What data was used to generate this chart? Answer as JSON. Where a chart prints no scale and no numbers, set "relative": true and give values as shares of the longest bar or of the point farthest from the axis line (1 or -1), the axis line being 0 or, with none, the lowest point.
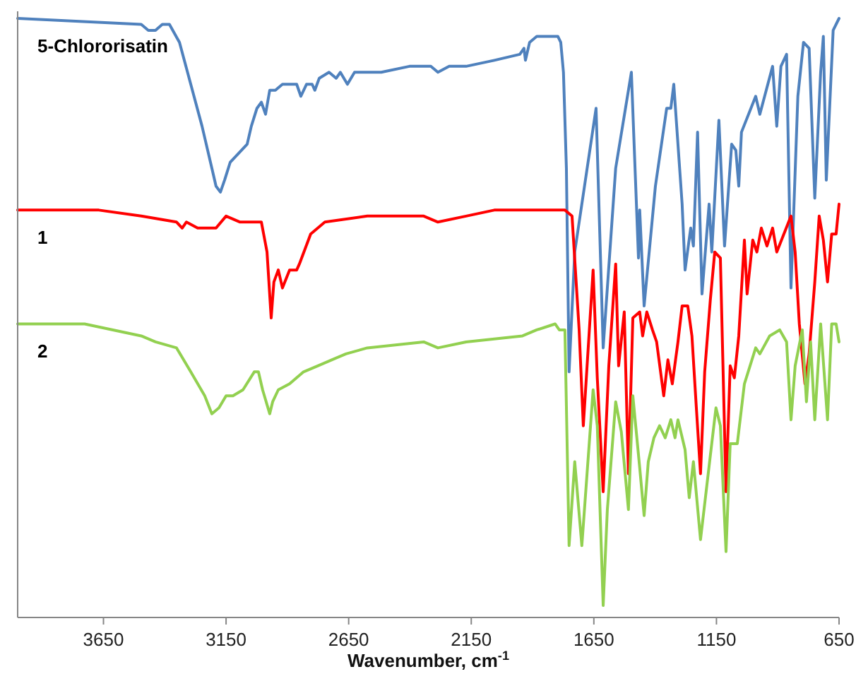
{
  "chart_data": {
    "type": "line",
    "relative": true,
    "xlabel": "Wavenumber, cm$^{-1}$",
    "xlim": [
      4000,
      650
    ],
    "xticks": [
      3650,
      3150,
      2650,
      2150,
      1650,
      1150,
      650
    ],
    "tick_labels": "x",
    "legend": false,
    "grid": false,
    "marker": "none",
    "line_style": "solid",
    "series": [
      {
        "name": "5-Chlororisatin",
        "color": "#4f81bd",
        "x": [
          4000,
          3496,
          3467,
          3438,
          3410,
          3381,
          3340,
          3294,
          3248,
          3208,
          3191,
          3173,
          3156,
          3133,
          3110,
          3087,
          3064,
          3047,
          3024,
          3006,
          2989,
          2972,
          2949,
          2920,
          2891,
          2862,
          2845,
          2822,
          2799,
          2788,
          2770,
          2730,
          2701,
          2684,
          2655,
          2626,
          2574,
          2517,
          2402,
          2315,
          2286,
          2240,
          2171,
          2056,
          1952,
          1935,
          1929,
          1912,
          1883,
          1797,
          1785,
          1774,
          1762,
          1751,
          1728,
          1641,
          1612,
          1561,
          1497,
          1468,
          1463,
          1445,
          1399,
          1353,
          1336,
          1324,
          1290,
          1278,
          1255,
          1244,
          1227,
          1209,
          1180,
          1169,
          1140,
          1117,
          1088,
          1071,
          1059,
          1048,
          990,
          973,
          921,
          904,
          887,
          864,
          846,
          818,
          795,
          772,
          749,
          725,
          714,
          702,
          674,
          650
        ],
        "values": [
          1.0,
          0.99,
          0.98,
          0.98,
          0.99,
          0.99,
          0.96,
          0.89,
          0.82,
          0.75,
          0.72,
          0.71,
          0.73,
          0.76,
          0.77,
          0.78,
          0.79,
          0.82,
          0.85,
          0.86,
          0.84,
          0.88,
          0.88,
          0.89,
          0.89,
          0.89,
          0.87,
          0.89,
          0.89,
          0.88,
          0.9,
          0.91,
          0.9,
          0.91,
          0.89,
          0.91,
          0.91,
          0.91,
          0.92,
          0.92,
          0.91,
          0.92,
          0.92,
          0.93,
          0.94,
          0.95,
          0.93,
          0.96,
          0.97,
          0.97,
          0.96,
          0.91,
          0.75,
          0.41,
          0.61,
          0.85,
          0.45,
          0.75,
          0.91,
          0.6,
          0.68,
          0.52,
          0.72,
          0.85,
          0.85,
          0.89,
          0.69,
          0.58,
          0.65,
          0.62,
          0.81,
          0.54,
          0.69,
          0.61,
          0.83,
          0.62,
          0.79,
          0.78,
          0.72,
          0.81,
          0.87,
          0.84,
          0.92,
          0.82,
          0.92,
          0.94,
          0.55,
          0.87,
          0.96,
          0.95,
          0.7,
          0.91,
          0.97,
          0.73,
          0.98,
          1.0
        ]
      },
      {
        "name": "1",
        "color": "#ff0000",
        "x": [
          4000,
          3669,
          3496,
          3352,
          3329,
          3312,
          3266,
          3208,
          3191,
          3150,
          3093,
          3006,
          2983,
          2966,
          2955,
          2937,
          2920,
          2891,
          2862,
          2851,
          2805,
          2747,
          2574,
          2344,
          2286,
          2171,
          2056,
          1883,
          1768,
          1739,
          1710,
          1693,
          1653,
          1636,
          1612,
          1589,
          1561,
          1549,
          1526,
          1509,
          1491,
          1463,
          1451,
          1434,
          1411,
          1394,
          1365,
          1348,
          1330,
          1307,
          1290,
          1267,
          1250,
          1232,
          1215,
          1198,
          1175,
          1157,
          1134,
          1111,
          1094,
          1077,
          1059,
          1036,
          1025,
          1002,
          985,
          967,
          944,
          921,
          904,
          846,
          829,
          812,
          789,
          772,
          749,
          731,
          714,
          697,
          680,
          662,
          650
        ],
        "values": [
          0.68,
          0.68,
          0.67,
          0.66,
          0.65,
          0.66,
          0.65,
          0.65,
          0.65,
          0.67,
          0.66,
          0.66,
          0.61,
          0.5,
          0.56,
          0.58,
          0.55,
          0.58,
          0.58,
          0.59,
          0.64,
          0.66,
          0.67,
          0.67,
          0.66,
          0.67,
          0.68,
          0.68,
          0.68,
          0.67,
          0.48,
          0.32,
          0.58,
          0.4,
          0.21,
          0.42,
          0.59,
          0.42,
          0.51,
          0.24,
          0.5,
          0.51,
          0.47,
          0.51,
          0.48,
          0.46,
          0.37,
          0.43,
          0.39,
          0.46,
          0.52,
          0.52,
          0.47,
          0.35,
          0.24,
          0.41,
          0.53,
          0.61,
          0.6,
          0.21,
          0.42,
          0.4,
          0.47,
          0.63,
          0.54,
          0.63,
          0.61,
          0.65,
          0.62,
          0.65,
          0.61,
          0.67,
          0.61,
          0.49,
          0.39,
          0.44,
          0.56,
          0.67,
          0.63,
          0.56,
          0.64,
          0.64,
          0.69
        ]
      },
      {
        "name": "2",
        "color": "#92d050",
        "x": [
          4000,
          3727,
          3496,
          3438,
          3352,
          3294,
          3237,
          3208,
          3179,
          3150,
          3122,
          3081,
          3035,
          3018,
          3001,
          2972,
          2960,
          2937,
          2891,
          2834,
          2776,
          2719,
          2661,
          2574,
          2344,
          2286,
          2171,
          1941,
          1883,
          1808,
          1791,
          1768,
          1751,
          1728,
          1699,
          1653,
          1636,
          1612,
          1595,
          1561,
          1538,
          1509,
          1491,
          1463,
          1445,
          1428,
          1405,
          1382,
          1359,
          1336,
          1319,
          1307,
          1278,
          1261,
          1244,
          1215,
          1175,
          1152,
          1134,
          1111,
          1094,
          1065,
          1036,
          990,
          973,
          933,
          892,
          864,
          846,
          829,
          800,
          783,
          766,
          749,
          725,
          697,
          680,
          662,
          650
        ],
        "values": [
          0.49,
          0.49,
          0.47,
          0.46,
          0.45,
          0.41,
          0.37,
          0.34,
          0.35,
          0.37,
          0.37,
          0.38,
          0.41,
          0.41,
          0.38,
          0.34,
          0.36,
          0.38,
          0.39,
          0.41,
          0.42,
          0.43,
          0.44,
          0.45,
          0.46,
          0.45,
          0.46,
          0.47,
          0.48,
          0.49,
          0.48,
          0.48,
          0.12,
          0.26,
          0.12,
          0.38,
          0.32,
          0.02,
          0.18,
          0.36,
          0.31,
          0.18,
          0.37,
          0.25,
          0.17,
          0.26,
          0.3,
          0.32,
          0.3,
          0.33,
          0.3,
          0.33,
          0.28,
          0.2,
          0.26,
          0.13,
          0.27,
          0.35,
          0.32,
          0.11,
          0.29,
          0.29,
          0.39,
          0.45,
          0.44,
          0.47,
          0.48,
          0.46,
          0.33,
          0.42,
          0.48,
          0.36,
          0.46,
          0.33,
          0.49,
          0.33,
          0.49,
          0.49,
          0.46
        ]
      }
    ]
  }
}
